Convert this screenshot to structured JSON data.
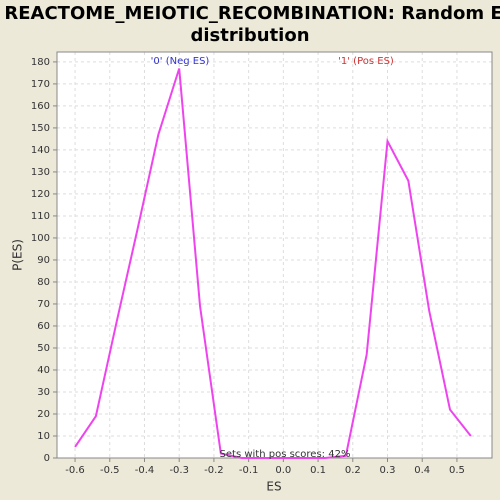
{
  "chart_data": {
    "type": "line",
    "title": [
      "REACTOME_MEIOTIC_RECOMBINATION: Random ES",
      "distribution"
    ],
    "x_label": "ES",
    "y_label": "P(ES)",
    "annotations": [
      "'0' (Neg ES)",
      "'1' (Pos ES)",
      "Sets with pos scores: 42%"
    ],
    "annotation_colors": [
      "#3333cc",
      "#cc3333",
      "#333333"
    ],
    "x": [
      -0.6,
      -0.54,
      -0.48,
      -0.42,
      -0.36,
      -0.3,
      -0.24,
      -0.18,
      -0.12,
      -0.06,
      0,
      0.06,
      0.12,
      0.18,
      0.24,
      0.3,
      0.36,
      0.42,
      0.48,
      0.54
    ],
    "series": [
      {
        "name": "P(ES)",
        "color": "#ee44ee",
        "values": [
          5,
          19,
          62,
          104,
          147,
          177,
          69,
          2,
          0,
          0,
          0,
          0,
          0,
          1,
          47,
          144,
          126,
          67,
          22,
          10
        ]
      }
    ],
    "xlim": [
      -0.652,
      0.601
    ],
    "ylim": [
      0,
      184.5
    ],
    "xticks": [
      -0.6,
      -0.5,
      -0.4,
      -0.3,
      -0.2,
      -0.1,
      {
        "value": 0,
        "label": "0.0"
      },
      0.1,
      0.2,
      0.3,
      0.4,
      0.5
    ],
    "yticks": [
      0,
      10,
      20,
      30,
      40,
      50,
      60,
      70,
      80,
      90,
      100,
      110,
      120,
      130,
      140,
      150,
      160,
      170,
      180
    ],
    "grid": true
  }
}
